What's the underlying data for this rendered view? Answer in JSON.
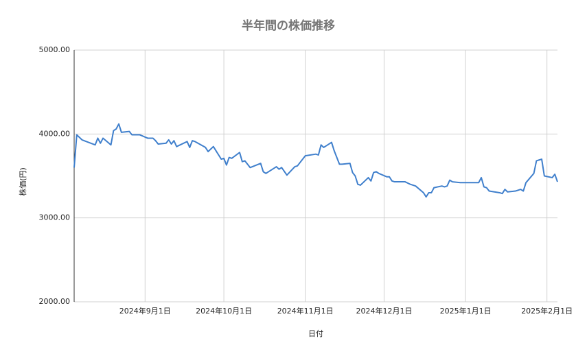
{
  "chart_data": {
    "type": "line",
    "title": "半年間の株価推移",
    "x_label": "日付",
    "y_label": "株価(円)",
    "x": [
      "2024-08-05",
      "2024-08-06",
      "2024-08-08",
      "2024-08-13",
      "2024-08-14",
      "2024-08-15",
      "2024-08-16",
      "2024-08-19",
      "2024-08-20",
      "2024-08-21",
      "2024-08-22",
      "2024-08-23",
      "2024-08-26",
      "2024-08-27",
      "2024-08-30",
      "2024-09-02",
      "2024-09-04",
      "2024-09-05",
      "2024-09-06",
      "2024-09-09",
      "2024-09-10",
      "2024-09-11",
      "2024-09-12",
      "2024-09-13",
      "2024-09-17",
      "2024-09-18",
      "2024-09-19",
      "2024-09-20",
      "2024-09-24",
      "2024-09-25",
      "2024-09-27",
      "2024-09-30",
      "2024-10-01",
      "2024-10-02",
      "2024-10-03",
      "2024-10-04",
      "2024-10-07",
      "2024-10-08",
      "2024-10-09",
      "2024-10-11",
      "2024-10-15",
      "2024-10-16",
      "2024-10-17",
      "2024-10-21",
      "2024-10-22",
      "2024-10-23",
      "2024-10-25",
      "2024-10-28",
      "2024-10-29",
      "2024-11-01",
      "2024-11-05",
      "2024-11-06",
      "2024-11-07",
      "2024-11-08",
      "2024-11-11",
      "2024-11-12",
      "2024-11-14",
      "2024-11-15",
      "2024-11-18",
      "2024-11-19",
      "2024-11-20",
      "2024-11-21",
      "2024-11-22",
      "2024-11-25",
      "2024-11-26",
      "2024-11-27",
      "2024-11-28",
      "2024-11-29",
      "2024-12-02",
      "2024-12-03",
      "2024-12-04",
      "2024-12-05",
      "2024-12-09",
      "2024-12-11",
      "2024-12-12",
      "2024-12-13",
      "2024-12-16",
      "2024-12-17",
      "2024-12-18",
      "2024-12-19",
      "2024-12-20",
      "2024-12-23",
      "2024-12-24",
      "2024-12-25",
      "2024-12-26",
      "2024-12-27",
      "2024-12-30",
      "2025-01-06",
      "2025-01-07",
      "2025-01-08",
      "2025-01-09",
      "2025-01-10",
      "2025-01-14",
      "2025-01-15",
      "2025-01-16",
      "2025-01-17",
      "2025-01-20",
      "2025-01-21",
      "2025-01-22",
      "2025-01-23",
      "2025-01-24",
      "2025-01-27",
      "2025-01-28",
      "2025-01-29",
      "2025-01-30",
      "2025-01-31",
      "2025-02-03",
      "2025-02-04",
      "2025-02-05"
    ],
    "series": [
      {
        "name": "株価",
        "color": "#3f7fcc",
        "values": [
          3600,
          3990,
          3930,
          3870,
          3950,
          3890,
          3950,
          3870,
          4040,
          4060,
          4120,
          4020,
          4030,
          3990,
          3990,
          3950,
          3950,
          3920,
          3880,
          3890,
          3930,
          3880,
          3920,
          3850,
          3910,
          3840,
          3920,
          3910,
          3840,
          3790,
          3850,
          3700,
          3710,
          3630,
          3720,
          3710,
          3780,
          3670,
          3680,
          3600,
          3650,
          3550,
          3530,
          3610,
          3580,
          3600,
          3510,
          3610,
          3620,
          3740,
          3760,
          3750,
          3870,
          3840,
          3900,
          3800,
          3640,
          3640,
          3650,
          3540,
          3500,
          3400,
          3390,
          3480,
          3440,
          3540,
          3550,
          3530,
          3490,
          3490,
          3440,
          3430,
          3430,
          3400,
          3390,
          3380,
          3300,
          3250,
          3300,
          3300,
          3360,
          3380,
          3370,
          3380,
          3450,
          3430,
          3420,
          3420,
          3480,
          3370,
          3360,
          3320,
          3300,
          3290,
          3340,
          3310,
          3320,
          3330,
          3340,
          3320,
          3420,
          3530,
          3680,
          3690,
          3700,
          3500,
          3480,
          3520,
          3430
        ]
      }
    ],
    "xlim": [
      "2024-08-05",
      "2025-02-05"
    ],
    "xticks": [
      {
        "value": "2024-09-01",
        "label": "2024年9月1日"
      },
      {
        "value": "2024-10-01",
        "label": "2024年10月1日"
      },
      {
        "value": "2024-11-01",
        "label": "2024年11月1日"
      },
      {
        "value": "2024-12-01",
        "label": "2024年12月1日"
      },
      {
        "value": "2025-01-01",
        "label": "2025年1月1日"
      },
      {
        "value": "2025-02-01",
        "label": "2025年2月1日"
      }
    ],
    "ylim": [
      2000,
      5000
    ],
    "yticks": [
      {
        "value": 2000,
        "label": "2000.00"
      },
      {
        "value": 3000,
        "label": "3000.00"
      },
      {
        "value": 4000,
        "label": "4000.00"
      },
      {
        "value": 5000,
        "label": "5000.00"
      }
    ],
    "grid": true
  }
}
